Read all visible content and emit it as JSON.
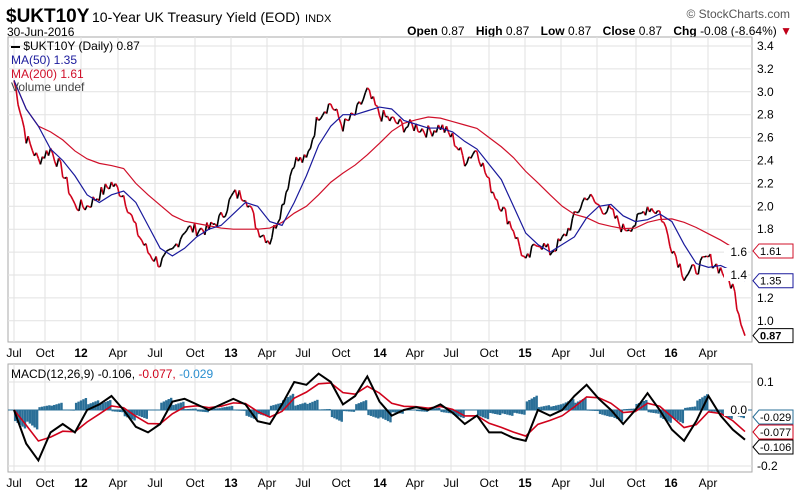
{
  "header": {
    "symbol": "$UKT10Y",
    "description": "10-Year UK Treasury Yield (EOD)",
    "exchange": "INDX",
    "date": "30-Jun-2016",
    "brand": "© StockCharts.com",
    "open_label": "Open",
    "open": "0.87",
    "high_label": "High",
    "high": "0.87",
    "low_label": "Low",
    "low": "0.87",
    "close_label": "Close",
    "close": "0.87",
    "chg_label": "Chg",
    "chg": "-0.08 (-8.64%)"
  },
  "legend": {
    "price": "$UKT10Y (Daily) 0.87",
    "ma50": "MA(50) 1.35",
    "ma200": "MA(200) 1.61",
    "volume": "Volume undef",
    "macd_prefix": "MACD(12,26,9) -0.106, ",
    "macd_signal": "-0.077, ",
    "macd_hist": "-0.029"
  },
  "colors": {
    "price_up": "#000000",
    "price_down": "#d0021b",
    "ma50": "#1a1a9c",
    "ma200": "#d0102a",
    "macd_hist": "#2a6f97"
  },
  "chart_data": [
    {
      "type": "line",
      "title": "$UKT10Y 10-Year UK Treasury Yield",
      "ylim": [
        0.85,
        3.45
      ],
      "yticks": [
        "3.4",
        "3.2",
        "3.0",
        "2.8",
        "2.6",
        "2.4",
        "2.2",
        "2.0",
        "1.8",
        "1.6",
        "1.4",
        "1.2",
        "1.0"
      ],
      "xticks": [
        "Jul",
        "Oct",
        "12",
        "Apr",
        "Jul",
        "Oct",
        "13",
        "Apr",
        "Jul",
        "Oct",
        "14",
        "Apr",
        "Jul",
        "Oct",
        "15",
        "Apr",
        "Jul",
        "Oct",
        "16",
        "Apr"
      ],
      "price": [
        3.1,
        2.6,
        2.4,
        2.5,
        2.3,
        2.0,
        2.0,
        2.1,
        2.2,
        2.1,
        1.8,
        1.6,
        1.5,
        1.6,
        1.8,
        1.8,
        1.8,
        1.9,
        2.1,
        2.1,
        1.8,
        1.7,
        2.0,
        2.4,
        2.4,
        2.8,
        2.9,
        2.7,
        2.8,
        3.0,
        2.8,
        2.75,
        2.7,
        2.7,
        2.65,
        2.7,
        2.6,
        2.4,
        2.5,
        2.2,
        2.0,
        1.8,
        1.5,
        1.7,
        1.6,
        1.7,
        1.9,
        2.1,
        2.0,
        1.95,
        1.8,
        1.85,
        2.0,
        1.95,
        1.65,
        1.4,
        1.45,
        1.55,
        1.45,
        1.3,
        0.87
      ],
      "tags": {
        "ma200": "1.61",
        "ma50": "1.35",
        "last": "0.87"
      }
    },
    {
      "type": "line",
      "title": "MACD(12,26,9)",
      "ylim": [
        -0.22,
        0.16
      ],
      "yticks": [
        "0.1",
        "0.0",
        "-0.2"
      ],
      "macd": [
        0.0,
        -0.12,
        -0.18,
        -0.08,
        -0.05,
        -0.08,
        0.0,
        0.02,
        0.05,
        0.0,
        -0.06,
        -0.08,
        -0.05,
        0.03,
        0.04,
        0.02,
        0.0,
        0.02,
        0.04,
        0.02,
        -0.04,
        -0.05,
        0.02,
        0.1,
        0.09,
        0.13,
        0.1,
        0.02,
        0.05,
        0.12,
        0.03,
        -0.02,
        0.0,
        0.01,
        0.0,
        0.02,
        -0.01,
        -0.05,
        -0.02,
        -0.08,
        -0.08,
        -0.1,
        -0.11,
        0.0,
        -0.02,
        0.0,
        0.05,
        0.09,
        0.04,
        0.0,
        -0.05,
        0.0,
        0.06,
        0.0,
        -0.07,
        -0.11,
        -0.04,
        0.05,
        -0.02,
        -0.07,
        -0.106
      ],
      "tags": {
        "hist": "-0.029",
        "signal": "-0.077",
        "macd": "-0.106"
      }
    }
  ]
}
